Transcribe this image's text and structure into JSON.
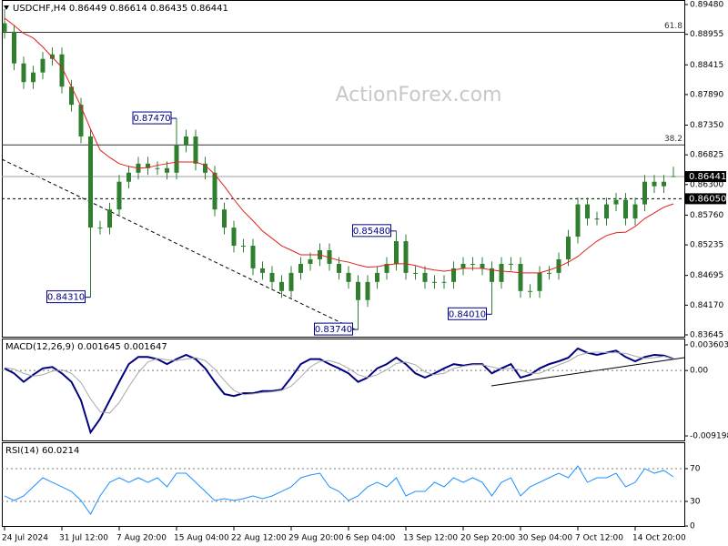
{
  "chart_data": [
    {
      "type": "candlestick",
      "title": "USDCHF,H4  0.86449 0.86614 0.86435 0.86441",
      "watermark": "ActionForex.com",
      "categories": [
        "24 Jul 2024",
        null,
        null,
        null,
        null,
        null,
        "31 Jul 12:00",
        null,
        null,
        null,
        null,
        null,
        "7 Aug 20:00",
        null,
        null,
        null,
        null,
        null,
        "15 Aug 04:00",
        null,
        null,
        null,
        null,
        null,
        "22 Aug 12:00",
        null,
        null,
        null,
        null,
        null,
        "29 Aug 20:00",
        null,
        null,
        null,
        null,
        null,
        "6 Sep 04:00",
        null,
        null,
        null,
        null,
        null,
        "13 Sep 12:00",
        null,
        null,
        null,
        null,
        null,
        "20 Sep 20:00",
        null,
        null,
        null,
        null,
        null,
        "30 Sep 04:00",
        null,
        null,
        null,
        null,
        null,
        "7 Oct 12:00",
        null,
        null,
        null,
        null,
        null,
        "14 Oct 20:00",
        null,
        null,
        null,
        null
      ],
      "open": [
        0.8915,
        0.89,
        0.8844,
        0.8811,
        0.8828,
        0.8852,
        0.886,
        0.8803,
        0.8771,
        0.8715,
        0.8554,
        0.8554,
        0.8586,
        0.8635,
        0.8651,
        0.8667,
        0.8659,
        0.8659,
        0.8651,
        0.8699,
        0.8715,
        0.8667,
        0.8651,
        0.8586,
        0.8554,
        0.8522,
        0.8522,
        0.8482,
        0.8474,
        0.8458,
        0.8442,
        0.8474,
        0.849,
        0.8498,
        0.8514,
        0.849,
        0.8474,
        0.8458,
        0.8426,
        0.8458,
        0.8474,
        0.849,
        0.853,
        0.8474,
        0.8474,
        0.8458,
        0.8458,
        0.8458,
        0.8482,
        0.849,
        0.849,
        0.8482,
        0.8458,
        0.849,
        0.849,
        0.8442,
        0.8442,
        0.8474,
        0.8474,
        0.8498,
        0.8538,
        0.8595,
        0.857,
        0.857,
        0.8595,
        0.8603,
        0.857,
        0.8595,
        0.8635,
        0.8627,
        0.86449
      ],
      "high": [
        0.894,
        0.8912,
        0.8856,
        0.884,
        0.8864,
        0.8872,
        0.8872,
        0.8815,
        0.8783,
        0.8727,
        0.8566,
        0.8598,
        0.8647,
        0.8663,
        0.8679,
        0.8679,
        0.8671,
        0.8671,
        0.8747,
        0.8727,
        0.8727,
        0.8679,
        0.8663,
        0.8598,
        0.8566,
        0.8534,
        0.8534,
        0.8494,
        0.8486,
        0.847,
        0.8486,
        0.8502,
        0.851,
        0.8526,
        0.8526,
        0.8502,
        0.8486,
        0.847,
        0.847,
        0.8486,
        0.8502,
        0.8548,
        0.8542,
        0.8486,
        0.8486,
        0.847,
        0.847,
        0.8494,
        0.8502,
        0.8502,
        0.8502,
        0.8494,
        0.8502,
        0.8502,
        0.8502,
        0.8454,
        0.8486,
        0.8486,
        0.851,
        0.855,
        0.8607,
        0.8607,
        0.8582,
        0.8607,
        0.8615,
        0.8615,
        0.8607,
        0.8647,
        0.8647,
        0.8647,
        0.86614
      ],
      "low": [
        0.8888,
        0.8832,
        0.8799,
        0.8799,
        0.8816,
        0.884,
        0.8791,
        0.8759,
        0.8703,
        0.8431,
        0.8542,
        0.8542,
        0.8574,
        0.8623,
        0.8639,
        0.8647,
        0.8647,
        0.8639,
        0.8639,
        0.8687,
        0.8655,
        0.8639,
        0.8574,
        0.8542,
        0.851,
        0.851,
        0.847,
        0.8462,
        0.8446,
        0.843,
        0.843,
        0.8462,
        0.8478,
        0.8486,
        0.8478,
        0.8462,
        0.8446,
        0.8374,
        0.8414,
        0.8446,
        0.8462,
        0.8478,
        0.8462,
        0.8462,
        0.8446,
        0.8446,
        0.8446,
        0.8446,
        0.847,
        0.8478,
        0.847,
        0.8401,
        0.8446,
        0.8478,
        0.843,
        0.843,
        0.843,
        0.8462,
        0.8462,
        0.8486,
        0.8526,
        0.8558,
        0.8558,
        0.8558,
        0.8583,
        0.8558,
        0.8558,
        0.8583,
        0.8615,
        0.8615,
        0.86435
      ],
      "close": [
        0.89,
        0.8844,
        0.8811,
        0.8828,
        0.8852,
        0.886,
        0.8803,
        0.8771,
        0.8715,
        0.8554,
        0.8554,
        0.8586,
        0.8635,
        0.8651,
        0.8667,
        0.8659,
        0.8659,
        0.8651,
        0.8699,
        0.8715,
        0.8667,
        0.8651,
        0.8586,
        0.8554,
        0.8522,
        0.8522,
        0.8482,
        0.8474,
        0.8458,
        0.8442,
        0.8474,
        0.849,
        0.8498,
        0.8514,
        0.849,
        0.8474,
        0.8458,
        0.8426,
        0.8458,
        0.8474,
        0.849,
        0.853,
        0.8474,
        0.8474,
        0.8458,
        0.8458,
        0.8458,
        0.8482,
        0.849,
        0.849,
        0.8482,
        0.8458,
        0.849,
        0.849,
        0.8442,
        0.8442,
        0.8474,
        0.8474,
        0.8498,
        0.8538,
        0.8595,
        0.857,
        0.857,
        0.8595,
        0.8603,
        0.857,
        0.8595,
        0.8635,
        0.8627,
        0.8635,
        0.86441
      ],
      "color": "#2f7f2f",
      "moving_average": {
        "color": "#e0211d",
        "values": [
          0.8924,
          0.8911,
          0.8897,
          0.8889,
          0.8873,
          0.8855,
          0.8837,
          0.8803,
          0.8768,
          0.8728,
          0.8691,
          0.8678,
          0.8667,
          0.8662,
          0.8659,
          0.866,
          0.8664,
          0.8667,
          0.867,
          0.867,
          0.867,
          0.8664,
          0.8648,
          0.8627,
          0.8604,
          0.8583,
          0.8566,
          0.8548,
          0.8535,
          0.8522,
          0.8514,
          0.8506,
          0.8506,
          0.8506,
          0.8501,
          0.8496,
          0.8493,
          0.8488,
          0.8484,
          0.8485,
          0.8488,
          0.849,
          0.849,
          0.8487,
          0.8482,
          0.8479,
          0.8477,
          0.8479,
          0.8482,
          0.8482,
          0.8482,
          0.8479,
          0.8477,
          0.8476,
          0.8474,
          0.8474,
          0.8474,
          0.8479,
          0.8485,
          0.8493,
          0.8503,
          0.8517,
          0.853,
          0.854,
          0.8545,
          0.8546,
          0.8556,
          0.857,
          0.858,
          0.859,
          0.8596
        ]
      },
      "ylim": [
        0.83645,
        0.8948
      ],
      "yticks": [
        0.83645,
        {
          "value": 0.8417,
          "label": "0.84170"
        },
        0.84695,
        0.85235,
        {
          "value": 0.8576,
          "label": "0.85760"
        },
        {
          "value": 0.863,
          "label": "0.86300"
        },
        0.86825,
        {
          "value": 0.8735,
          "label": "0.87350"
        },
        {
          "value": 0.8789,
          "label": "0.87890"
        },
        0.88415,
        0.88955,
        {
          "value": 0.8948,
          "label": "0.89480"
        }
      ],
      "grid": false,
      "levels": [
        {
          "value": 0.8899,
          "label": "61.8"
        },
        {
          "value": 0.87,
          "label": "38.2"
        }
      ],
      "price_line": 0.86441,
      "support": {
        "value": 0.8605,
        "label": "0.86050"
      },
      "annotations": [
        {
          "value": 0.8747,
          "label": "0.87470"
        },
        {
          "value": 0.8431,
          "label": "0.84310"
        },
        {
          "value": 0.8374,
          "label": "0.83740"
        },
        {
          "value": 0.8548,
          "label": "0.85480"
        },
        {
          "value": 0.8401,
          "label": "0.84010"
        }
      ]
    },
    {
      "type": "line",
      "title": "MACD(12,26,9) 0.001645 0.001647",
      "ylim": [
        -0.009198,
        0.003603
      ],
      "yticks": [
        -0.009198,
        {
          "value": 0,
          "label": "0.00"
        },
        0.003603
      ],
      "grid": true,
      "series": [
        {
          "color": "#000080",
          "values": [
            0.0003,
            -0.0004,
            -0.0016,
            -0.0006,
            0.0003,
            0.0005,
            -0.0004,
            -0.0016,
            -0.0042,
            -0.0087,
            -0.0068,
            -0.0042,
            -0.0016,
            0.0009,
            0.0019,
            0.0019,
            0.0016,
            0.0009,
            0.0016,
            0.0022,
            0.0016,
            0.0003,
            -0.0016,
            -0.0033,
            -0.0036,
            -0.0032,
            -0.0032,
            -0.0029,
            -0.0029,
            -0.0027,
            -0.001,
            0.0009,
            0.0016,
            0.0016,
            0.0009,
            0.0003,
            -0.0004,
            -0.0016,
            -0.001,
            0.0003,
            0.0009,
            0.0018,
            0.0009,
            -0.0004,
            -0.001,
            -0.0004,
            0.0003,
            0.0009,
            0.0007,
            0.0009,
            0.0009,
            -0.0004,
            0.0003,
            0.0009,
            -0.001,
            -0.0006,
            0.0003,
            0.0009,
            0.0013,
            0.0018,
            0.0031,
            0.0025,
            0.0022,
            0.0025,
            0.0028,
            0.0019,
            0.0013,
            0.0019,
            0.0022,
            0.0021,
            0.001645
          ]
        },
        {
          "color": "#a8a8a8",
          "values": [
            0.0004,
            0.0002,
            -0.0004,
            -0.0008,
            -0.0006,
            -0.0001,
            0.0001,
            -0.0004,
            -0.0017,
            -0.004,
            -0.0058,
            -0.006,
            -0.0045,
            -0.0023,
            -0.0003,
            0.0012,
            0.0017,
            0.0015,
            0.0014,
            0.0016,
            0.0018,
            0.0014,
            0.0002,
            -0.0014,
            -0.0028,
            -0.0034,
            -0.0033,
            -0.0031,
            -0.003,
            -0.0028,
            -0.0022,
            -0.0009,
            0.0005,
            0.0013,
            0.0014,
            0.001,
            0.0003,
            -0.0006,
            -0.001,
            -0.0006,
            0.0001,
            0.001,
            0.0012,
            0.0008,
            -0.0002,
            -0.0006,
            -0.0004,
            0.0003,
            0.0006,
            0.0008,
            0.0008,
            0.0005,
            0.0002,
            0.0003,
            0.0001,
            -0.0004,
            -0.0004,
            0.0002,
            0.0008,
            0.0013,
            0.0021,
            0.0025,
            0.0026,
            0.0025,
            0.0025,
            0.0024,
            0.002,
            0.0017,
            0.0018,
            0.002,
            0.001647
          ]
        }
      ]
    },
    {
      "type": "line",
      "title": "RSI(14) 60.0214",
      "ylim": [
        0,
        100
      ],
      "yticks": [
        0,
        30,
        70
      ],
      "grid": true,
      "series": [
        {
          "color": "#1e90ff",
          "values": [
            36.7,
            31.1,
            36.7,
            47.8,
            58.9,
            53.3,
            47.8,
            42.2,
            31.1,
            14.4,
            36.7,
            53.3,
            58.9,
            53.3,
            58.9,
            53.3,
            58.9,
            47.8,
            64.4,
            64.4,
            53.3,
            42.2,
            31.1,
            33.3,
            31.1,
            33.3,
            36.7,
            33.3,
            36.7,
            42.2,
            47.8,
            58.9,
            62.2,
            64.4,
            47.8,
            42.2,
            31.1,
            36.7,
            47.8,
            53.3,
            47.8,
            58.9,
            36.7,
            42.2,
            42.2,
            53.3,
            47.8,
            58.9,
            53.3,
            58.9,
            53.3,
            36.7,
            53.3,
            58.9,
            36.7,
            47.8,
            53.3,
            58.9,
            64.4,
            58.9,
            73.3,
            53.3,
            58.9,
            58.9,
            64.4,
            47.8,
            53.3,
            70.0,
            64.4,
            67.8,
            60.0214
          ]
        }
      ]
    }
  ]
}
